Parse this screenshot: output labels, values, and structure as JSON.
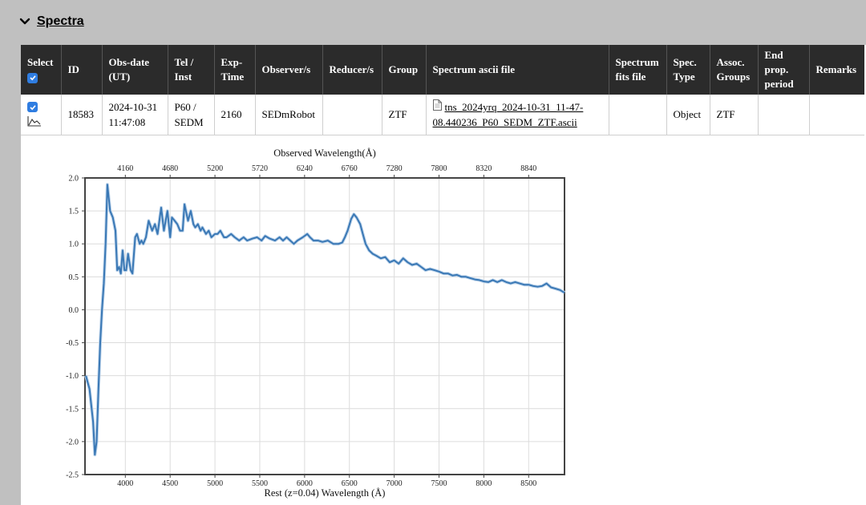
{
  "section": {
    "title": "Spectra"
  },
  "table": {
    "headers": [
      {
        "key": "select",
        "lines": [
          "Select"
        ]
      },
      {
        "key": "id",
        "lines": [
          "ID"
        ]
      },
      {
        "key": "obs_date",
        "lines": [
          "Obs-date",
          "(UT)"
        ]
      },
      {
        "key": "tel_inst",
        "lines": [
          "Tel /",
          "Inst"
        ]
      },
      {
        "key": "exp_time",
        "lines": [
          "Exp-",
          "Time"
        ]
      },
      {
        "key": "observers",
        "lines": [
          "Observer/s"
        ]
      },
      {
        "key": "reducers",
        "lines": [
          "Reducer/s"
        ]
      },
      {
        "key": "group",
        "lines": [
          "Group"
        ]
      },
      {
        "key": "ascii_file",
        "lines": [
          "Spectrum ascii file"
        ]
      },
      {
        "key": "fits_file",
        "lines": [
          "Spectrum",
          "fits file"
        ]
      },
      {
        "key": "spec_type",
        "lines": [
          "Spec.",
          "Type"
        ]
      },
      {
        "key": "assoc_groups",
        "lines": [
          "Assoc.",
          "Groups"
        ]
      },
      {
        "key": "end_prop",
        "lines": [
          "End",
          "prop.",
          "period"
        ]
      },
      {
        "key": "remarks",
        "lines": [
          "Remarks"
        ]
      }
    ],
    "row": {
      "id": "18583",
      "obs_date_line1": "2024-10-31",
      "obs_date_line2": "11:47:08",
      "tel_line1": "P60 /",
      "tel_line2": "SEDM",
      "exp_time": "2160",
      "observers": "SEDmRobot",
      "reducers": "",
      "group": "ZTF",
      "ascii_file_line1": "tns_2024yrq_2024-10-31_11-47-",
      "ascii_file_line2": "08.440236_P60_SEDM_ZTF.ascii",
      "fits_file": "",
      "spec_type": "Object",
      "assoc_groups": "ZTF",
      "end_prop": "",
      "remarks": ""
    }
  },
  "colors": {
    "accent": "#2f7de1",
    "header_bg": "#2b2b2b",
    "line": "#3a78b5"
  },
  "icons": {
    "section_toggle": "chevron-down-icon",
    "file": "document-icon",
    "plot": "line-chart-icon",
    "check": "checkbox-checked-icon"
  },
  "chart_data": {
    "type": "line",
    "title": "",
    "xlabel": "Rest (z=0.04) Wavelength (Å)",
    "x2label": "Observed Wavelength(Å)",
    "ylabel": "",
    "xlim": [
      3550,
      8900
    ],
    "ylim": [
      -2.5,
      2.0
    ],
    "x_ticks": [
      4000,
      4500,
      5000,
      5500,
      6000,
      6500,
      7000,
      7500,
      8000,
      8500
    ],
    "x2_ticks": [
      4160,
      4680,
      5200,
      5720,
      6240,
      6760,
      7280,
      7800,
      8320,
      8840
    ],
    "y_ticks": [
      -2.5,
      -2.0,
      -1.5,
      -1.0,
      -0.5,
      0.0,
      0.5,
      1.0,
      1.5,
      2.0
    ],
    "y_tick_labels": [
      "-2.5",
      "-2.0",
      "-1.5",
      "-1.0",
      "-0.5",
      "0.0",
      "0.5",
      "1.0",
      "1.5",
      "2.0"
    ],
    "grid": true,
    "series": [
      {
        "x": [
          3560,
          3600,
          3640,
          3660,
          3680,
          3700,
          3720,
          3740,
          3760,
          3780,
          3800,
          3830,
          3860,
          3890,
          3910,
          3930,
          3950,
          3970,
          3990,
          4010,
          4030,
          4060,
          4080,
          4110,
          4130,
          4160,
          4180,
          4200,
          4230,
          4260,
          4300,
          4330,
          4360,
          4400,
          4430,
          4470,
          4500,
          4520,
          4550,
          4580,
          4610,
          4640,
          4660,
          4700,
          4730,
          4760,
          4780,
          4810,
          4840,
          4860,
          4900,
          4930,
          4960,
          5000,
          5030,
          5060,
          5100,
          5130,
          5180,
          5220,
          5270,
          5320,
          5360,
          5420,
          5470,
          5520,
          5560,
          5610,
          5670,
          5720,
          5760,
          5800,
          5840,
          5880,
          5920,
          5980,
          6030,
          6060,
          6100,
          6150,
          6200,
          6260,
          6320,
          6380,
          6420,
          6450,
          6480,
          6520,
          6550,
          6580,
          6620,
          6650,
          6680,
          6720,
          6760,
          6800,
          6850,
          6900,
          6950,
          7000,
          7050,
          7100,
          7150,
          7200,
          7250,
          7300,
          7350,
          7400,
          7450,
          7500,
          7550,
          7600,
          7650,
          7700,
          7750,
          7800,
          7850,
          7900,
          7950,
          8000,
          8050,
          8100,
          8150,
          8200,
          8250,
          8300,
          8350,
          8400,
          8450,
          8500,
          8550,
          8600,
          8650,
          8700,
          8750,
          8800,
          8850,
          8900
        ],
        "y": [
          -1.0,
          -1.2,
          -1.7,
          -2.2,
          -2.0,
          -1.2,
          -0.5,
          0.0,
          0.4,
          1.0,
          1.9,
          1.5,
          1.4,
          1.2,
          0.6,
          0.65,
          0.55,
          0.9,
          0.6,
          0.6,
          0.85,
          0.6,
          0.55,
          1.1,
          1.15,
          1.0,
          1.05,
          1.0,
          1.1,
          1.35,
          1.2,
          1.3,
          1.15,
          1.55,
          1.2,
          1.5,
          1.1,
          1.4,
          1.35,
          1.3,
          1.2,
          1.2,
          1.6,
          1.35,
          1.5,
          1.3,
          1.25,
          1.3,
          1.2,
          1.25,
          1.15,
          1.2,
          1.1,
          1.15,
          1.15,
          1.2,
          1.1,
          1.1,
          1.15,
          1.1,
          1.05,
          1.1,
          1.05,
          1.08,
          1.1,
          1.05,
          1.12,
          1.08,
          1.05,
          1.1,
          1.05,
          1.1,
          1.05,
          1.0,
          1.05,
          1.1,
          1.15,
          1.1,
          1.05,
          1.05,
          1.03,
          1.05,
          1.0,
          1.0,
          1.02,
          1.1,
          1.2,
          1.38,
          1.45,
          1.4,
          1.3,
          1.15,
          1.0,
          0.9,
          0.85,
          0.82,
          0.78,
          0.8,
          0.72,
          0.75,
          0.7,
          0.78,
          0.72,
          0.68,
          0.7,
          0.65,
          0.6,
          0.62,
          0.6,
          0.58,
          0.55,
          0.55,
          0.52,
          0.53,
          0.5,
          0.5,
          0.48,
          0.46,
          0.45,
          0.43,
          0.42,
          0.45,
          0.42,
          0.45,
          0.42,
          0.4,
          0.42,
          0.4,
          0.38,
          0.38,
          0.36,
          0.35,
          0.36,
          0.4,
          0.34,
          0.32,
          0.3,
          0.26
        ]
      }
    ]
  }
}
